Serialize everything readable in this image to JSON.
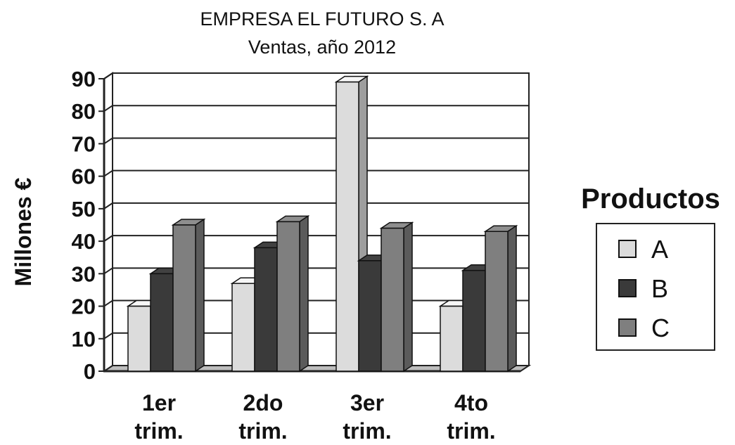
{
  "chart_data": {
    "type": "bar",
    "title": "EMPRESA EL FUTURO S. A",
    "subtitle": "Ventas, año 2012",
    "ylabel": "Millones €",
    "xlabel": "",
    "ylim": [
      0,
      90
    ],
    "yticks": [
      0,
      10,
      20,
      30,
      40,
      50,
      60,
      70,
      80,
      90
    ],
    "grid": true,
    "three_d": true,
    "categories": [
      [
        "1er",
        "trim."
      ],
      [
        "2do",
        "trim."
      ],
      [
        "3er",
        "trim."
      ],
      [
        "4to",
        "trim."
      ]
    ],
    "legend": {
      "title": "Productos",
      "position": "right"
    },
    "series": [
      {
        "name": "A",
        "color": "#dcdcdc",
        "values": [
          20,
          27,
          89,
          20
        ]
      },
      {
        "name": "B",
        "color": "#3a3a3a",
        "values": [
          30,
          38,
          34,
          31
        ]
      },
      {
        "name": "C",
        "color": "#7f7f7f",
        "values": [
          45,
          46,
          44,
          43
        ]
      }
    ]
  }
}
